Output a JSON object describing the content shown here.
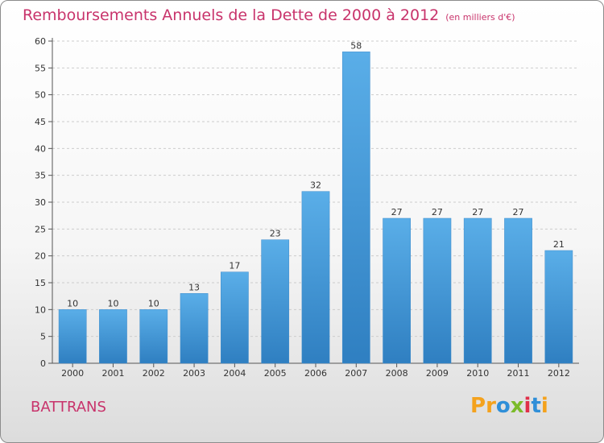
{
  "title": "Remboursements Annuels de la Dette de 2000 à 2012",
  "subtitle": "(en milliers d'€)",
  "place": "BATTRANS",
  "logo": {
    "letters": [
      "P",
      "r",
      "o",
      "x",
      "i",
      "t",
      "i"
    ],
    "colors": [
      "#f4a21d",
      "#f4a21d",
      "#2f8fd8",
      "#7bbb2a",
      "#e0304a",
      "#2f8fd8",
      "#f4a21d"
    ]
  },
  "colors": {
    "bar_top": "#5aaee8",
    "bar_bottom": "#2f7fc1",
    "title": "#c8336b",
    "grid": "#cccccc"
  },
  "chart_data": {
    "type": "bar",
    "title": "Remboursements Annuels de la Dette de 2000 à 2012",
    "subtitle": "(en milliers d'€)",
    "categories": [
      "2000",
      "2001",
      "2002",
      "2003",
      "2004",
      "2005",
      "2006",
      "2007",
      "2008",
      "2009",
      "2010",
      "2011",
      "2012"
    ],
    "values": [
      10,
      10,
      10,
      13,
      17,
      23,
      32,
      58,
      27,
      27,
      27,
      27,
      21
    ],
    "ylim": [
      0,
      60
    ],
    "yticks": [
      0,
      5,
      10,
      15,
      20,
      25,
      30,
      35,
      40,
      45,
      50,
      55,
      60
    ],
    "grid": true,
    "xlabel": "",
    "ylabel": ""
  }
}
